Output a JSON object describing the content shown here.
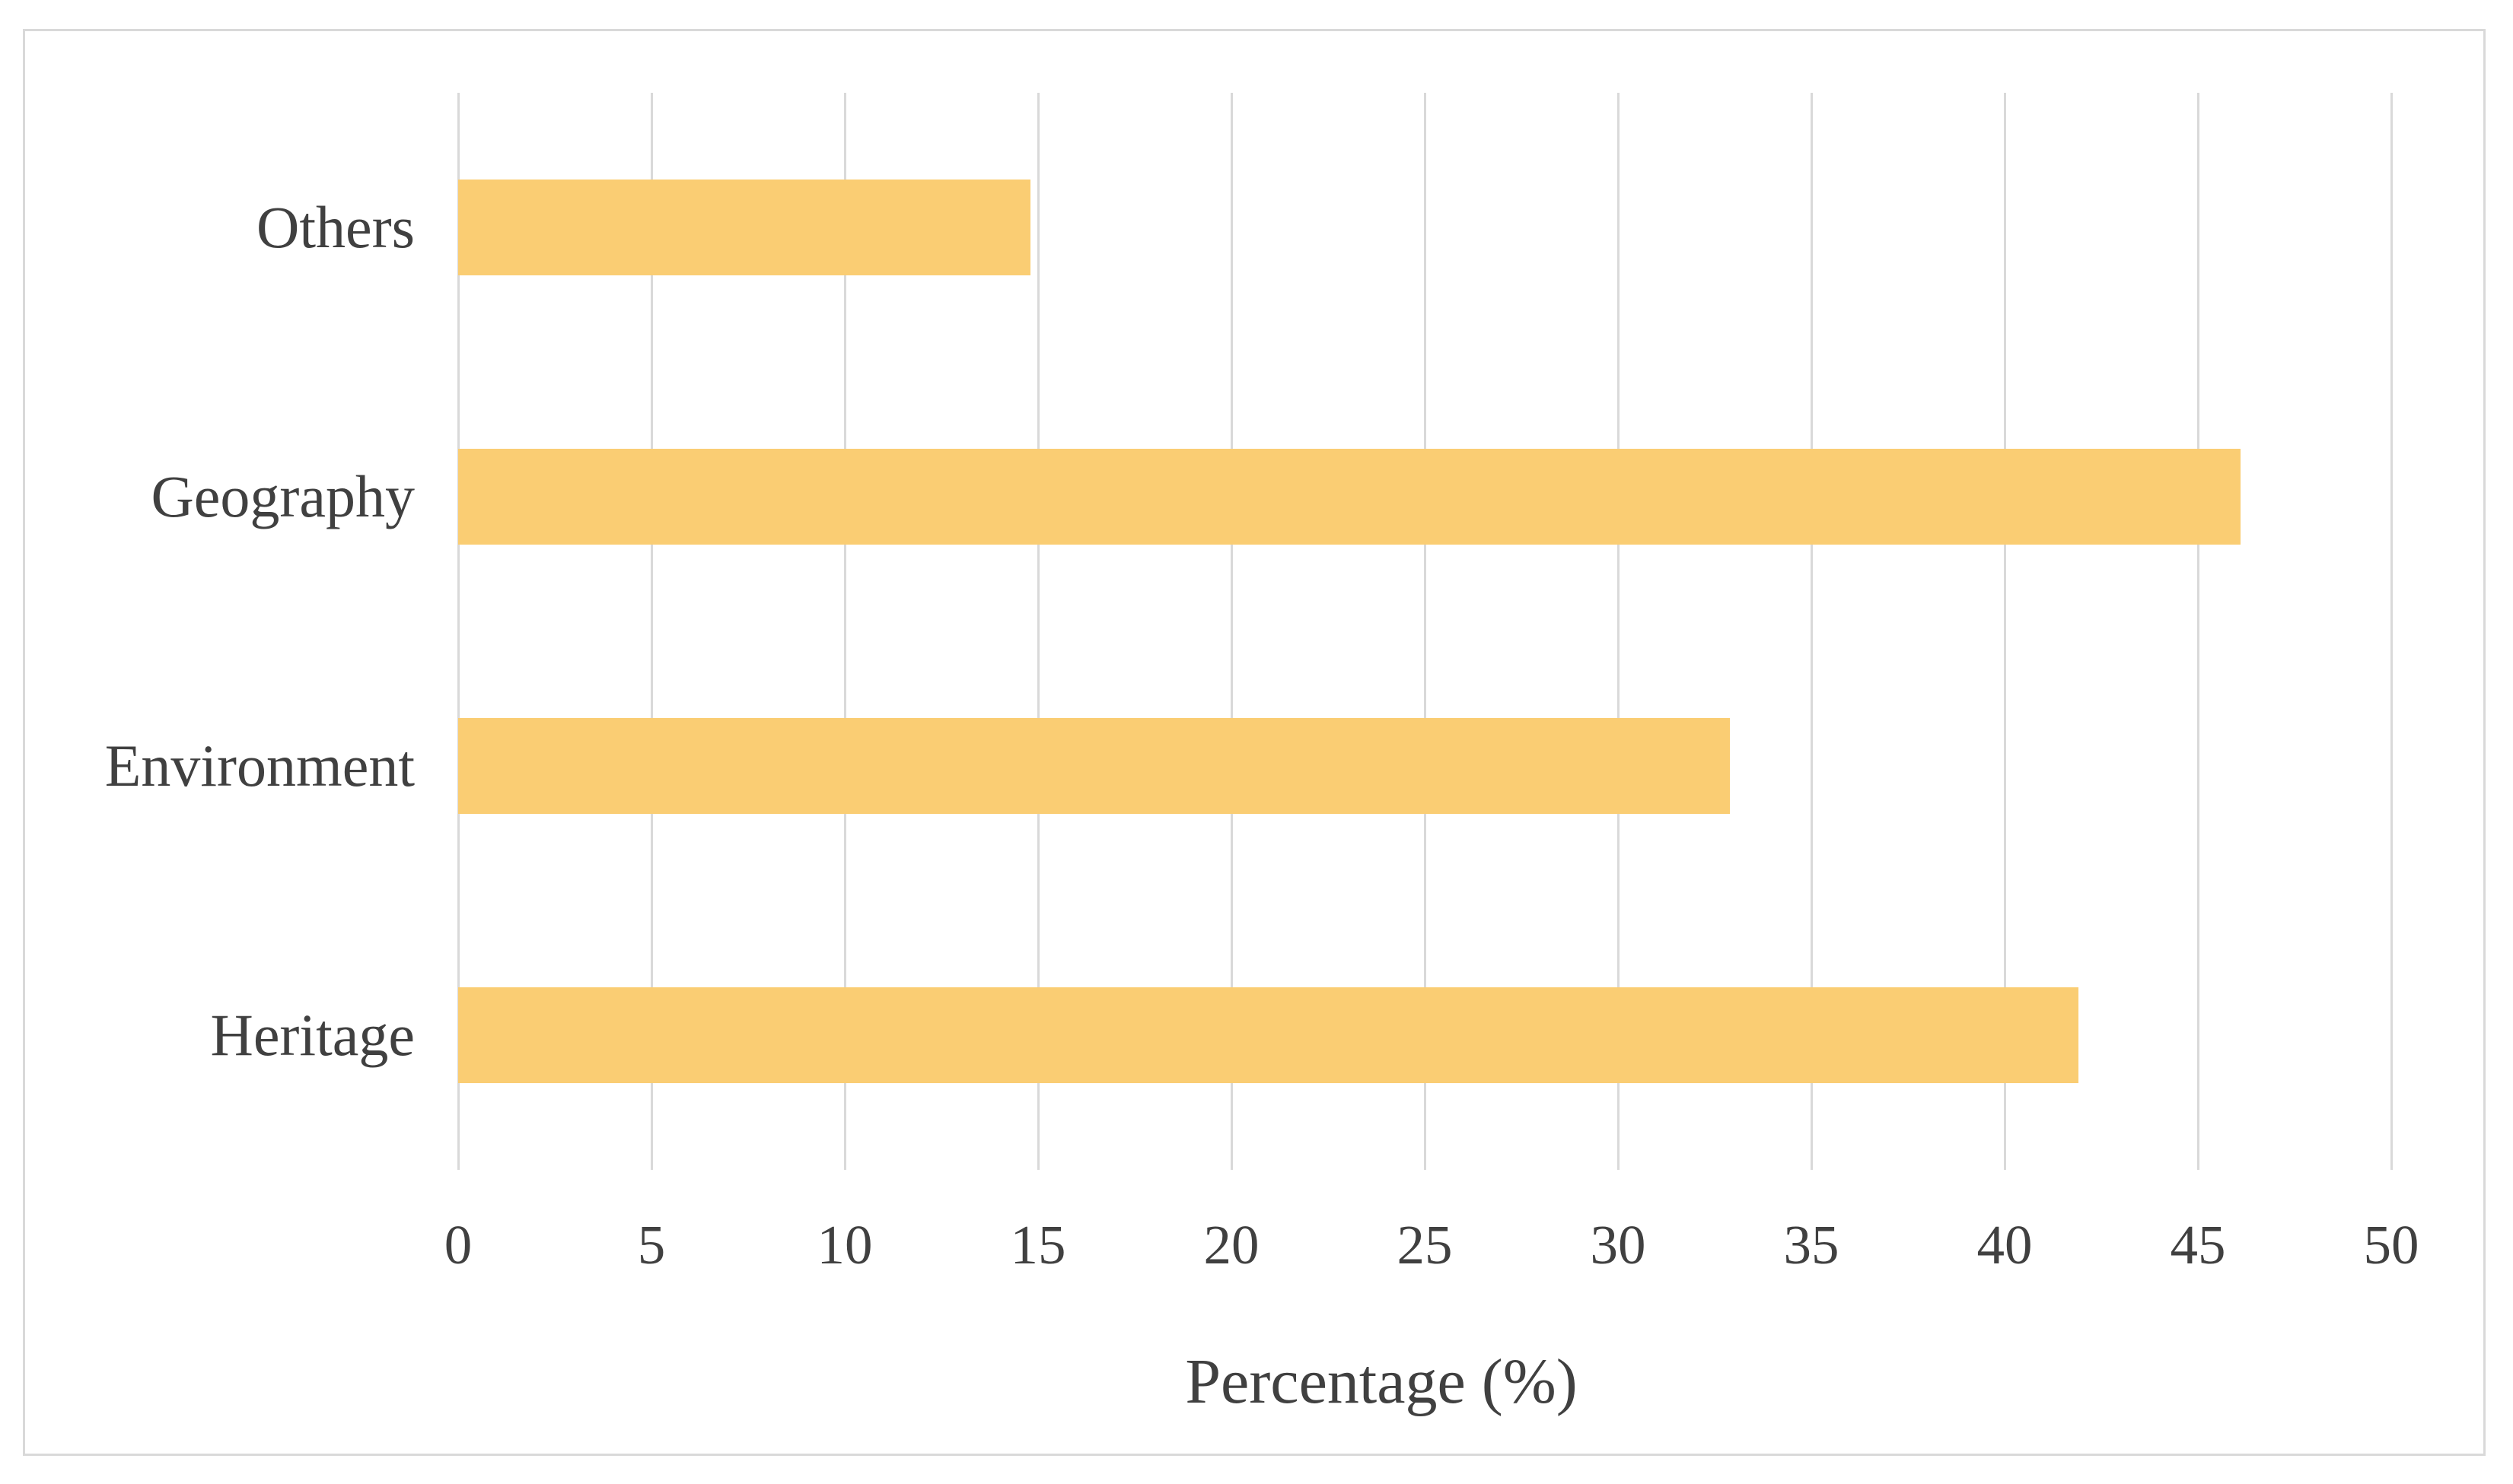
{
  "chart_data": {
    "type": "bar",
    "orientation": "horizontal",
    "title": "",
    "categories": [
      "Others",
      "Geography",
      "Environment",
      "Heritage"
    ],
    "values": [
      14.8,
      46.1,
      32.9,
      41.9
    ],
    "xlabel": "Percentage (%)",
    "ylabel": "",
    "xlim": [
      0,
      50
    ],
    "xticks": [
      0,
      5,
      10,
      15,
      20,
      25,
      30,
      35,
      40,
      45,
      50
    ],
    "grid": "vertical-gridlines-on",
    "legend": "none",
    "colors": {
      "bar": "#facd73",
      "gridline": "#d9d9d9",
      "frame": "#d9d9d9",
      "text": "#404040",
      "background": "#ffffff"
    }
  }
}
